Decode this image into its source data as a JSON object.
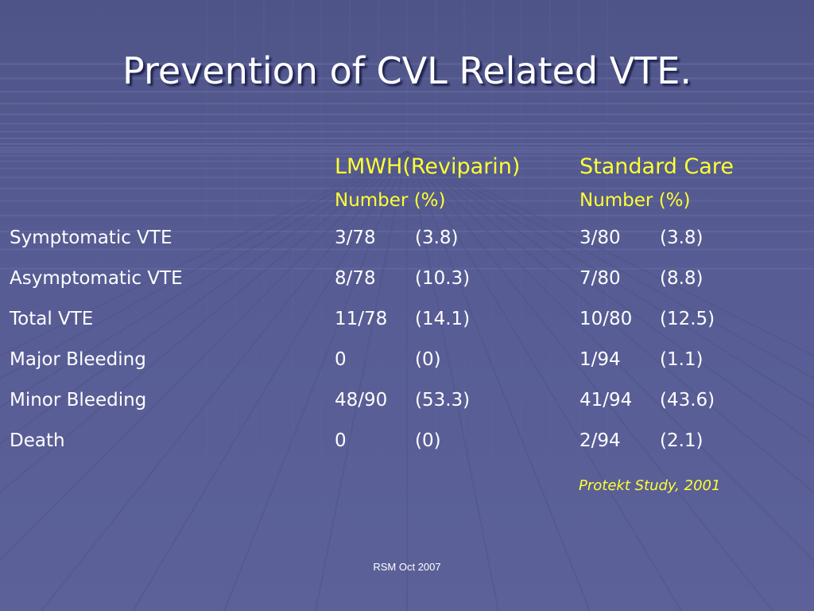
{
  "slide": {
    "title": "Prevention of CVL Related VTE.",
    "table": {
      "columns": [
        {
          "heading": "LMWH(Reviparin)",
          "subheading": "Number (%)"
        },
        {
          "heading": "Standard Care",
          "subheading": "Number (%)"
        }
      ],
      "rows": [
        {
          "label": "Symptomatic VTE",
          "lmwh_number": "3/78",
          "lmwh_percent": "(3.8)",
          "std_number": "3/80",
          "std_percent": "(3.8)"
        },
        {
          "label": "Asymptomatic VTE",
          "lmwh_number": "8/78",
          "lmwh_percent": "(10.3)",
          "std_number": "7/80",
          "std_percent": "(8.8)"
        },
        {
          "label": "Total VTE",
          "lmwh_number": "11/78",
          "lmwh_percent": "(14.1)",
          "std_number": "10/80",
          "std_percent": "(12.5)"
        },
        {
          "label": "Major Bleeding",
          "lmwh_number": "0",
          "lmwh_percent": "(0)",
          "std_number": "1/94",
          "std_percent": "(1.1)"
        },
        {
          "label": "Minor Bleeding",
          "lmwh_number": "48/90",
          "lmwh_percent": "(53.3)",
          "std_number": "41/94",
          "std_percent": "(43.6)"
        },
        {
          "label": "Death",
          "lmwh_number": "0",
          "lmwh_percent": "(0)",
          "std_number": "2/94",
          "std_percent": "(2.1)"
        }
      ]
    },
    "citation": "Protekt Study, 2001",
    "footer": "RSM Oct 2007"
  },
  "colors": {
    "background": "#555a91",
    "heading_text": "#ffff33",
    "body_text": "#ffffff"
  }
}
